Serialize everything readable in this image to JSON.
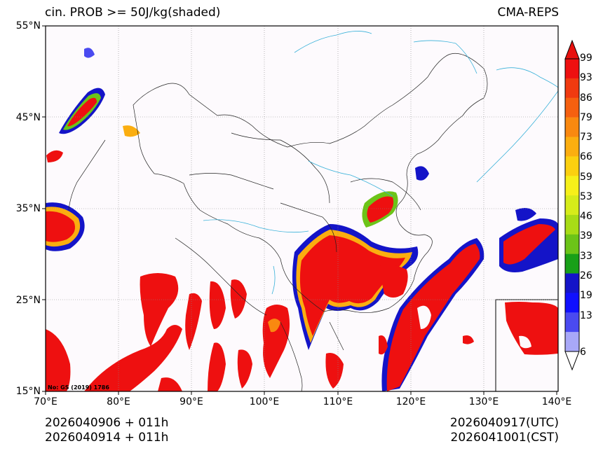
{
  "header": {
    "title_left": "cin. PROB >= 50J/kg(shaded)",
    "title_right": "CMA-REPS"
  },
  "map": {
    "lon_labels": [
      "70°E",
      "80°E",
      "90°E",
      "100°E",
      "110°E",
      "120°E",
      "130°E",
      "140°E"
    ],
    "lat_labels": [
      "55°N",
      "45°N",
      "35°N",
      "25°N",
      "15°N"
    ],
    "lon_range_deg": [
      70,
      140
    ],
    "lat_range_deg": [
      15,
      55
    ],
    "approval_text": "No: GS (2019) 1786"
  },
  "colorbar": {
    "ticks": [
      "99",
      "93",
      "86",
      "79",
      "73",
      "66",
      "59",
      "53",
      "46",
      "39",
      "33",
      "26",
      "19",
      "13",
      "6"
    ],
    "colors": [
      "#ee1010",
      "#f03a10",
      "#f56010",
      "#f98910",
      "#fbae10",
      "#fbd010",
      "#f6f01a",
      "#d6ec1a",
      "#a8dc16",
      "#6cc418",
      "#18a018",
      "#1414c8",
      "#1010ff",
      "#4a4af0",
      "#a8a8f8"
    ],
    "extend_max_color": "#e8100e",
    "extend_min_color": "#ffffff"
  },
  "footer": {
    "init_line": "2026040906  +  011h",
    "local_line": "2026040914  +  011h",
    "valid_utc": "2026040917(UTC)",
    "valid_cst": "2026041001(CST)"
  }
}
